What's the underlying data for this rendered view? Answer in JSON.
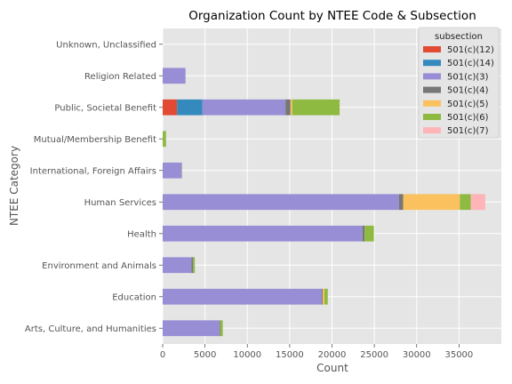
{
  "chart_data": {
    "type": "bar",
    "orientation": "horizontal",
    "stacked": true,
    "title": "Organization Count by NTEE Code & Subsection",
    "xlabel": "Count",
    "ylabel": "NTEE Category",
    "xlim": [
      0,
      40000
    ],
    "xticks": [
      0,
      5000,
      10000,
      15000,
      20000,
      25000,
      30000,
      35000
    ],
    "grid": true,
    "legend_title": "subsection",
    "legend_position": "top-right",
    "categories": [
      "Arts, Culture, and Humanities",
      "Education",
      "Environment and Animals",
      "Health",
      "Human Services",
      "International, Foreign Affairs",
      "Mutual/Membership Benefit",
      "Public, Societal Benefit",
      "Religion Related",
      "Unknown, Unclassified"
    ],
    "series": [
      {
        "name": "501(c)(12)",
        "color": "#E24A33",
        "values": [
          0,
          0,
          0,
          0,
          0,
          0,
          0,
          1700,
          0,
          0
        ]
      },
      {
        "name": "501(c)(14)",
        "color": "#348ABD",
        "values": [
          0,
          0,
          0,
          0,
          0,
          0,
          0,
          3000,
          0,
          0
        ]
      },
      {
        "name": "501(c)(3)",
        "color": "#988ED5",
        "values": [
          6700,
          18800,
          3400,
          23600,
          27900,
          2200,
          0,
          9800,
          2700,
          0
        ]
      },
      {
        "name": "501(c)(4)",
        "color": "#777777",
        "values": [
          100,
          100,
          200,
          250,
          500,
          50,
          0,
          600,
          0,
          0
        ]
      },
      {
        "name": "501(c)(5)",
        "color": "#FBC15E",
        "values": [
          0,
          200,
          0,
          0,
          6700,
          0,
          0,
          200,
          0,
          0
        ]
      },
      {
        "name": "501(c)(6)",
        "color": "#8EBA42",
        "values": [
          300,
          400,
          200,
          1100,
          1300,
          0,
          400,
          5600,
          0,
          0
        ]
      },
      {
        "name": "501(c)(7)",
        "color": "#FFB5B8",
        "values": [
          0,
          0,
          0,
          0,
          1700,
          0,
          0,
          0,
          0,
          0
        ]
      }
    ]
  }
}
